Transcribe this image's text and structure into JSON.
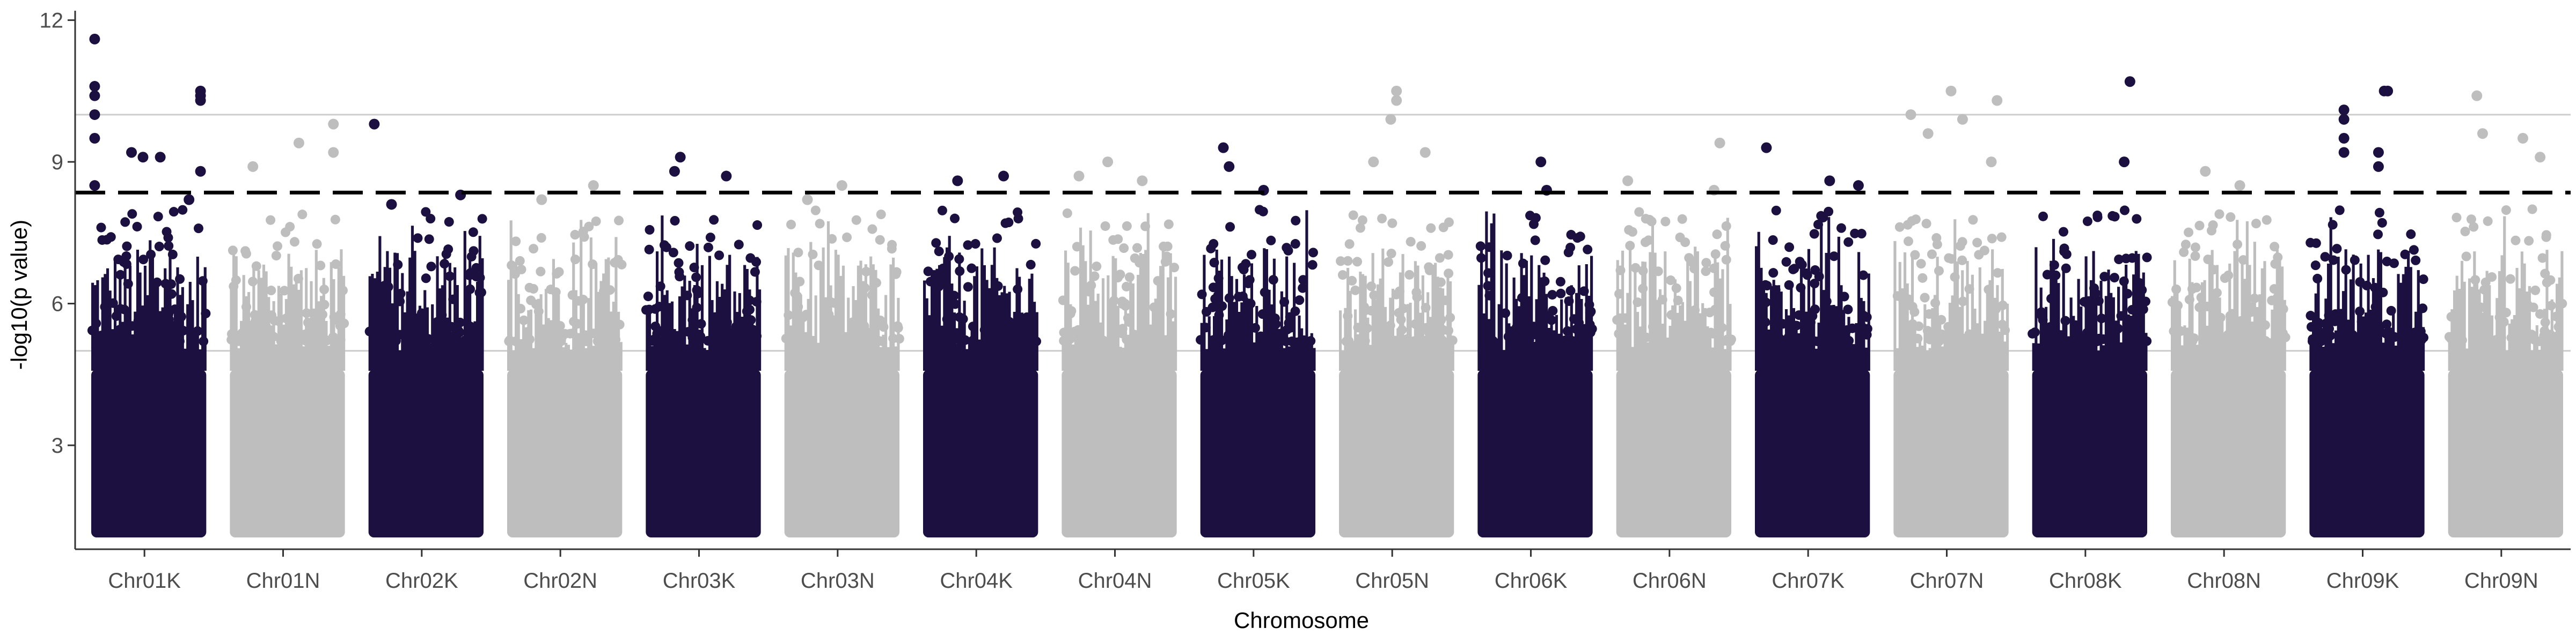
{
  "chart_data": {
    "type": "scatter",
    "subtype": "manhattan",
    "title": "",
    "xlabel": "Chromosome",
    "ylabel": "-log10(p value)",
    "ylim": [
      0.8,
      12.2
    ],
    "yticks": [
      3,
      6,
      9,
      12
    ],
    "grid": {
      "horizontal_lines_at": [
        5,
        10
      ],
      "vertical": false
    },
    "threshold": {
      "value": 8.35,
      "style": "dashed",
      "color": "#000000"
    },
    "colors": {
      "odd": "#1c1040",
      "even": "#bebebe"
    },
    "categories": [
      "Chr01K",
      "Chr01N",
      "Chr02K",
      "Chr02N",
      "Chr03K",
      "Chr03N",
      "Chr04K",
      "Chr04N",
      "Chr05K",
      "Chr05N",
      "Chr06K",
      "Chr06N",
      "Chr07K",
      "Chr07N",
      "Chr08K",
      "Chr08N",
      "Chr09K",
      "Chr09N"
    ],
    "series": [
      {
        "chromosome": "Chr01K",
        "color": "#1c1040",
        "points": [
          [
            0.03,
            11.6
          ],
          [
            0.03,
            10.6
          ],
          [
            0.03,
            10.4
          ],
          [
            0.03,
            10.0
          ],
          [
            0.03,
            9.5
          ],
          [
            0.35,
            9.2
          ],
          [
            0.45,
            9.1
          ],
          [
            0.6,
            9.1
          ],
          [
            0.95,
            10.5
          ],
          [
            0.95,
            10.4
          ],
          [
            0.95,
            10.3
          ],
          [
            0.95,
            8.8
          ],
          [
            0.03,
            8.5
          ],
          [
            0.85,
            8.2
          ]
        ]
      },
      {
        "chromosome": "Chr01N",
        "color": "#bebebe",
        "points": [
          [
            0.6,
            9.4
          ],
          [
            0.9,
            9.8
          ],
          [
            0.2,
            8.9
          ],
          [
            0.9,
            9.2
          ]
        ]
      },
      {
        "chromosome": "Chr02K",
        "color": "#1c1040",
        "points": [
          [
            0.05,
            9.8
          ],
          [
            0.2,
            8.1
          ],
          [
            0.8,
            8.3
          ]
        ]
      },
      {
        "chromosome": "Chr02N",
        "color": "#bebebe",
        "points": [
          [
            0.75,
            8.5
          ],
          [
            0.3,
            8.2
          ]
        ]
      },
      {
        "chromosome": "Chr03K",
        "color": "#1c1040",
        "points": [
          [
            0.3,
            9.1
          ],
          [
            0.7,
            8.7
          ],
          [
            0.25,
            8.8
          ]
        ]
      },
      {
        "chromosome": "Chr03N",
        "color": "#bebebe",
        "points": [
          [
            0.5,
            8.5
          ],
          [
            0.2,
            8.2
          ]
        ]
      },
      {
        "chromosome": "Chr04K",
        "color": "#1c1040",
        "points": [
          [
            0.3,
            8.6
          ],
          [
            0.7,
            8.7
          ]
        ]
      },
      {
        "chromosome": "Chr04N",
        "color": "#bebebe",
        "points": [
          [
            0.4,
            9.0
          ],
          [
            0.15,
            8.7
          ],
          [
            0.7,
            8.6
          ]
        ]
      },
      {
        "chromosome": "Chr05K",
        "color": "#1c1040",
        "points": [
          [
            0.2,
            9.3
          ],
          [
            0.25,
            8.9
          ],
          [
            0.55,
            8.4
          ]
        ]
      },
      {
        "chromosome": "Chr05N",
        "color": "#bebebe",
        "points": [
          [
            0.5,
            10.5
          ],
          [
            0.5,
            10.3
          ],
          [
            0.45,
            9.9
          ],
          [
            0.75,
            9.2
          ],
          [
            0.3,
            9.0
          ]
        ]
      },
      {
        "chromosome": "Chr06K",
        "color": "#1c1040",
        "points": [
          [
            0.55,
            9.0
          ],
          [
            0.6,
            8.4
          ]
        ]
      },
      {
        "chromosome": "Chr06N",
        "color": "#bebebe",
        "points": [
          [
            0.9,
            9.4
          ],
          [
            0.1,
            8.6
          ],
          [
            0.85,
            8.4
          ]
        ]
      },
      {
        "chromosome": "Chr07K",
        "color": "#1c1040",
        "points": [
          [
            0.1,
            9.3
          ],
          [
            0.65,
            8.6
          ],
          [
            0.9,
            8.5
          ]
        ]
      },
      {
        "chromosome": "Chr07N",
        "color": "#bebebe",
        "points": [
          [
            0.5,
            10.5
          ],
          [
            0.9,
            10.3
          ],
          [
            0.15,
            10.0
          ],
          [
            0.6,
            9.9
          ],
          [
            0.3,
            9.6
          ],
          [
            0.85,
            9.0
          ]
        ]
      },
      {
        "chromosome": "Chr08K",
        "color": "#1c1040",
        "points": [
          [
            0.85,
            10.7
          ],
          [
            0.8,
            9.0
          ]
        ]
      },
      {
        "chromosome": "Chr08N",
        "color": "#bebebe",
        "points": [
          [
            0.3,
            8.8
          ],
          [
            0.6,
            8.5
          ]
        ]
      },
      {
        "chromosome": "Chr09K",
        "color": "#1c1040",
        "points": [
          [
            0.3,
            10.1
          ],
          [
            0.3,
            9.9
          ],
          [
            0.3,
            9.5
          ],
          [
            0.3,
            9.2
          ],
          [
            0.65,
            10.5
          ],
          [
            0.68,
            10.5
          ],
          [
            0.6,
            9.2
          ],
          [
            0.6,
            8.9
          ]
        ]
      },
      {
        "chromosome": "Chr09N",
        "color": "#bebebe",
        "points": [
          [
            0.25,
            10.4
          ],
          [
            0.3,
            9.6
          ],
          [
            0.65,
            9.5
          ],
          [
            0.8,
            9.1
          ]
        ]
      }
    ]
  }
}
